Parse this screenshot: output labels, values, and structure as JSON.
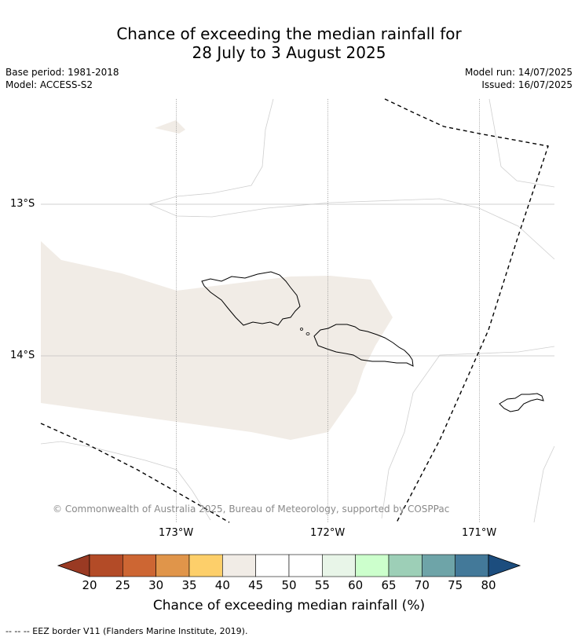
{
  "title_line1": "Chance of exceeding the median rainfall for",
  "title_line2": "28 July to 3 August 2025",
  "base_period": "Base period: 1981-2018",
  "model": "Model: ACCESS-S2",
  "model_run": "Model run: 14/07/2025",
  "issued": "Issued: 16/07/2025",
  "lat_labels": [
    "13°S",
    "14°S"
  ],
  "lon_labels": [
    "173°W",
    "172°W",
    "171°W"
  ],
  "copyright": "© Commonwealth of Australia 2025, Bureau of Meteorology, supported by COSPPac",
  "colorbar": {
    "title": "Chance of exceeding median rainfall (%)",
    "ticks": [
      "20",
      "25",
      "30",
      "35",
      "40",
      "45",
      "50",
      "55",
      "60",
      "65",
      "70",
      "75",
      "80"
    ],
    "colors": [
      "#b34b27",
      "#cd6633",
      "#e0954a",
      "#fdcf6a",
      "#f1ece6",
      "#ffffff",
      "#ffffff",
      "#e8f5e8",
      "#ccffcc",
      "#9dcfb7",
      "#6ea4a8",
      "#437999"
    ],
    "under_color": "#9a3a23",
    "over_color": "#1c4d7e"
  },
  "regions": [
    {
      "category": "40-45",
      "color": "#f1ece6"
    }
  ],
  "footnote": "--  --  -- EEZ border V11 (Flanders Marine Institute, 2019)."
}
